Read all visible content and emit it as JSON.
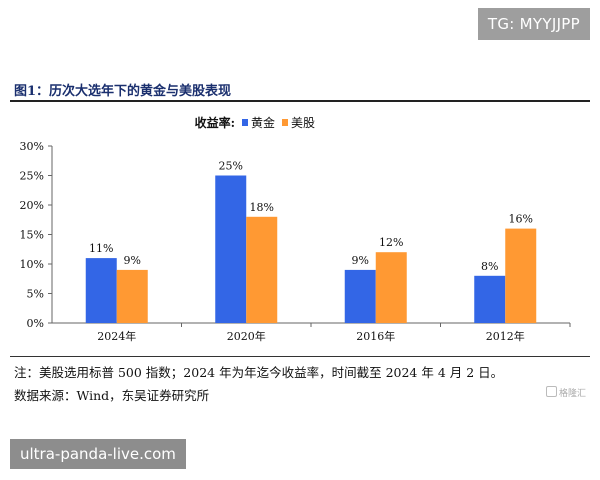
{
  "tag_text": "TG: MYYJJPP",
  "figure_title": "图1：历次大选年下的黄金与美股表现",
  "chart_data": {
    "type": "bar",
    "legend_title": "收益率:",
    "legend_position": "top-center",
    "categories": [
      "2024年",
      "2020年",
      "2016年",
      "2012年"
    ],
    "series": [
      {
        "name": "黄金",
        "color": "#3366e6",
        "values": [
          11,
          25,
          9,
          8
        ],
        "labels": [
          "11%",
          "25%",
          "9%",
          "8%"
        ]
      },
      {
        "name": "美股",
        "color": "#ff9933",
        "values": [
          9,
          18,
          12,
          16
        ],
        "labels": [
          "9%",
          "18%",
          "12%",
          "16%"
        ]
      }
    ],
    "ylim": [
      0,
      30
    ],
    "yticks": [
      "0%",
      "5%",
      "10%",
      "15%",
      "20%",
      "25%",
      "30%"
    ],
    "ytick_values": [
      0,
      5,
      10,
      15,
      20,
      25,
      30
    ],
    "grid": false
  },
  "note": "注：美股选用标普 500 指数；2024 年为年迄今收益率，时间截至 2024 年 4 月 2 日。",
  "source": "数据来源：Wind，东吴证券研究所",
  "logo_text": "格隆汇",
  "watermark": "ultra-panda-live.com"
}
